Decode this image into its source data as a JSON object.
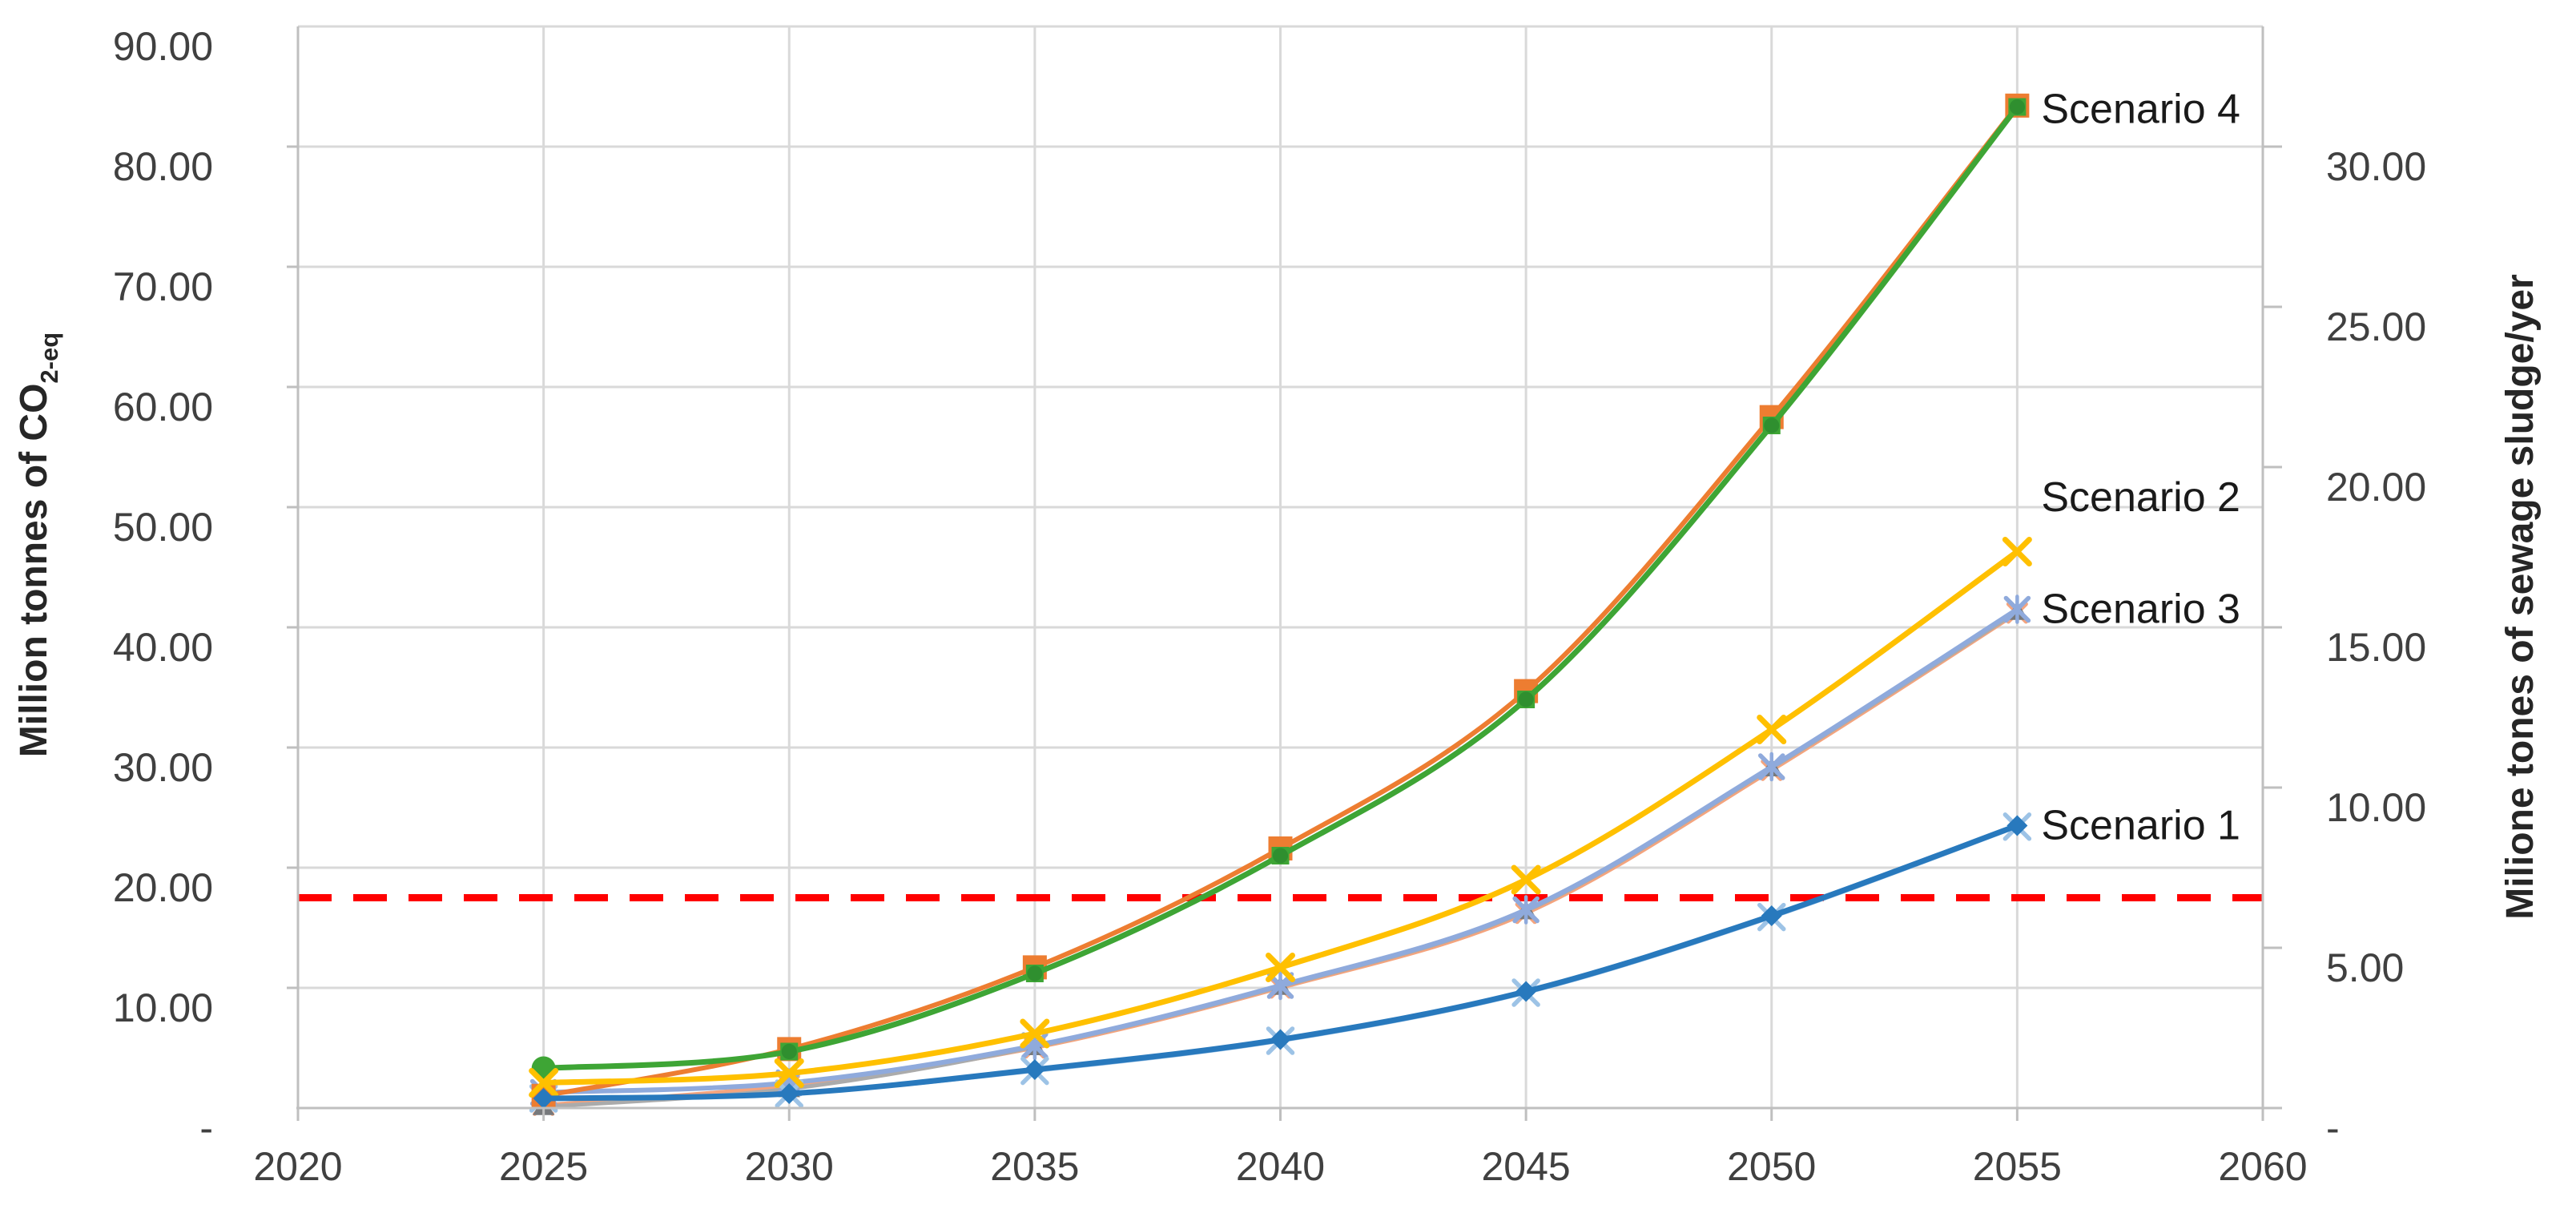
{
  "page": {
    "background": "#FFFFFF"
  },
  "chart_data": {
    "type": "line",
    "title": "",
    "years": [
      2025,
      2030,
      2035,
      2040,
      2045,
      2050,
      2055
    ],
    "x_axis": {
      "range": [
        2020,
        2060
      ],
      "ticks": [
        {
          "v": 2020,
          "label": "2020"
        },
        {
          "v": 2025,
          "label": "2025"
        },
        {
          "v": 2030,
          "label": "2030"
        },
        {
          "v": 2035,
          "label": "2035"
        },
        {
          "v": 2040,
          "label": "2040"
        },
        {
          "v": 2045,
          "label": "2045"
        },
        {
          "v": 2050,
          "label": "2050"
        },
        {
          "v": 2055,
          "label": "2055"
        },
        {
          "v": 2060,
          "label": "2060"
        }
      ]
    },
    "left_axis": {
      "title_prefix": "Million tonnes of CO",
      "title_sub": "2-eq",
      "range": [
        0,
        90
      ],
      "ticks": [
        {
          "v": 90,
          "label": "90.00"
        },
        {
          "v": 80,
          "label": "80.00"
        },
        {
          "v": 70,
          "label": "70.00"
        },
        {
          "v": 60,
          "label": "60.00"
        },
        {
          "v": 50,
          "label": "50.00"
        },
        {
          "v": 40,
          "label": "40.00"
        },
        {
          "v": 30,
          "label": "30.00"
        },
        {
          "v": 20,
          "label": "20.00"
        },
        {
          "v": 10,
          "label": "10.00"
        },
        {
          "v": 0,
          "label": "-"
        }
      ]
    },
    "right_axis": {
      "title": "Milione tones of sewage sludge/yer",
      "range": [
        0,
        33.75
      ],
      "ticks": [
        {
          "v": 30,
          "label": "30.00"
        },
        {
          "v": 25,
          "label": "25.00"
        },
        {
          "v": 20,
          "label": "20.00"
        },
        {
          "v": 15,
          "label": "15.00"
        },
        {
          "v": 10,
          "label": "10.00"
        },
        {
          "v": 5,
          "label": "5.00"
        },
        {
          "v": 0,
          "label": "-"
        }
      ]
    },
    "reference_line": {
      "value": 17.5,
      "axis": "left",
      "color": "#FF0000",
      "width": 9,
      "dash": "42 27"
    },
    "series": [
      {
        "id": "scenario-3-sludge",
        "label": "",
        "axis": "right",
        "color": "#F4A47E",
        "marker": "x",
        "marker_size": 11,
        "marker_stroke": 5,
        "line_width": 5,
        "values": [
          0.09,
          0.71,
          1.88,
          3.75,
          6.08,
          10.54,
          15.45
        ]
      },
      {
        "id": "scenario-3-sludge-alt",
        "label": "",
        "axis": "right",
        "color": "#ABABAB",
        "marker": "triangle",
        "marker_color": "#77797C",
        "marker_size": 13,
        "line_width": 5,
        "values": [
          0.04,
          0.6,
          1.91,
          3.79,
          6.15,
          10.61,
          15.49
        ]
      },
      {
        "id": "scenario-3",
        "label": "Scenario 3",
        "axis": "left",
        "color": "#8FAADC",
        "marker": "star6",
        "marker_size": 14,
        "marker_stroke": 5.5,
        "line_width": 6,
        "values": [
          1.3,
          2.1,
          5.2,
          10.2,
          16.5,
          28.4,
          41.5
        ]
      },
      {
        "id": "scenario-1-sludge",
        "label": "",
        "axis": "right",
        "color": "#9DC3E6",
        "marker": "x",
        "marker_size": 15,
        "marker_stroke": 5.5,
        "line_width": 5,
        "values": [
          0.3,
          0.45,
          1.16,
          2.1,
          3.6,
          5.96,
          8.78
        ]
      },
      {
        "id": "scenario-4-sludge",
        "label": "",
        "axis": "right",
        "color": "#ED7D31",
        "marker": "square",
        "marker_size": 15,
        "line_width": 6,
        "values": [
          0.38,
          1.84,
          4.39,
          8.1,
          13.01,
          21.56,
          31.28
        ]
      },
      {
        "id": "scenario-4",
        "label": "Scenario 4",
        "axis": "left",
        "color": "#3EA535",
        "marker": "circle-square",
        "marker_color2": "#2F8F2F",
        "marker_size": 12,
        "line_width": 7,
        "values": [
          3.3,
          4.7,
          11.2,
          21.0,
          34.0,
          56.8,
          83.3
        ]
      },
      {
        "id": "scenario-2",
        "label": "Scenario 2",
        "axis": "left",
        "color": "#FFC000",
        "marker": "x",
        "marker_size": 15,
        "marker_stroke": 7,
        "line_width": 7,
        "values": [
          2.1,
          2.9,
          6.2,
          11.7,
          19.0,
          31.5,
          46.3
        ]
      },
      {
        "id": "scenario-1",
        "label": "Scenario 1",
        "axis": "left",
        "color": "#2879BD",
        "marker": "diamond",
        "marker_size": 13,
        "line_width": 7,
        "values": [
          0.8,
          1.2,
          3.2,
          5.7,
          9.7,
          16.0,
          23.5
        ]
      }
    ],
    "annotations": [
      {
        "text": "Scenario 4",
        "anchor_value": 83.1
      },
      {
        "text": "Scenario 2",
        "anchor_value": 50.8
      },
      {
        "text": "Scenario 3",
        "anchor_value": 41.5
      },
      {
        "text": "Scenario 1",
        "anchor_value": 23.5
      }
    ],
    "grid": {
      "color": "#D9D9D9",
      "border_color": "#BFBFBF"
    },
    "tick_label_color": "#404040",
    "legend_position": "none"
  }
}
